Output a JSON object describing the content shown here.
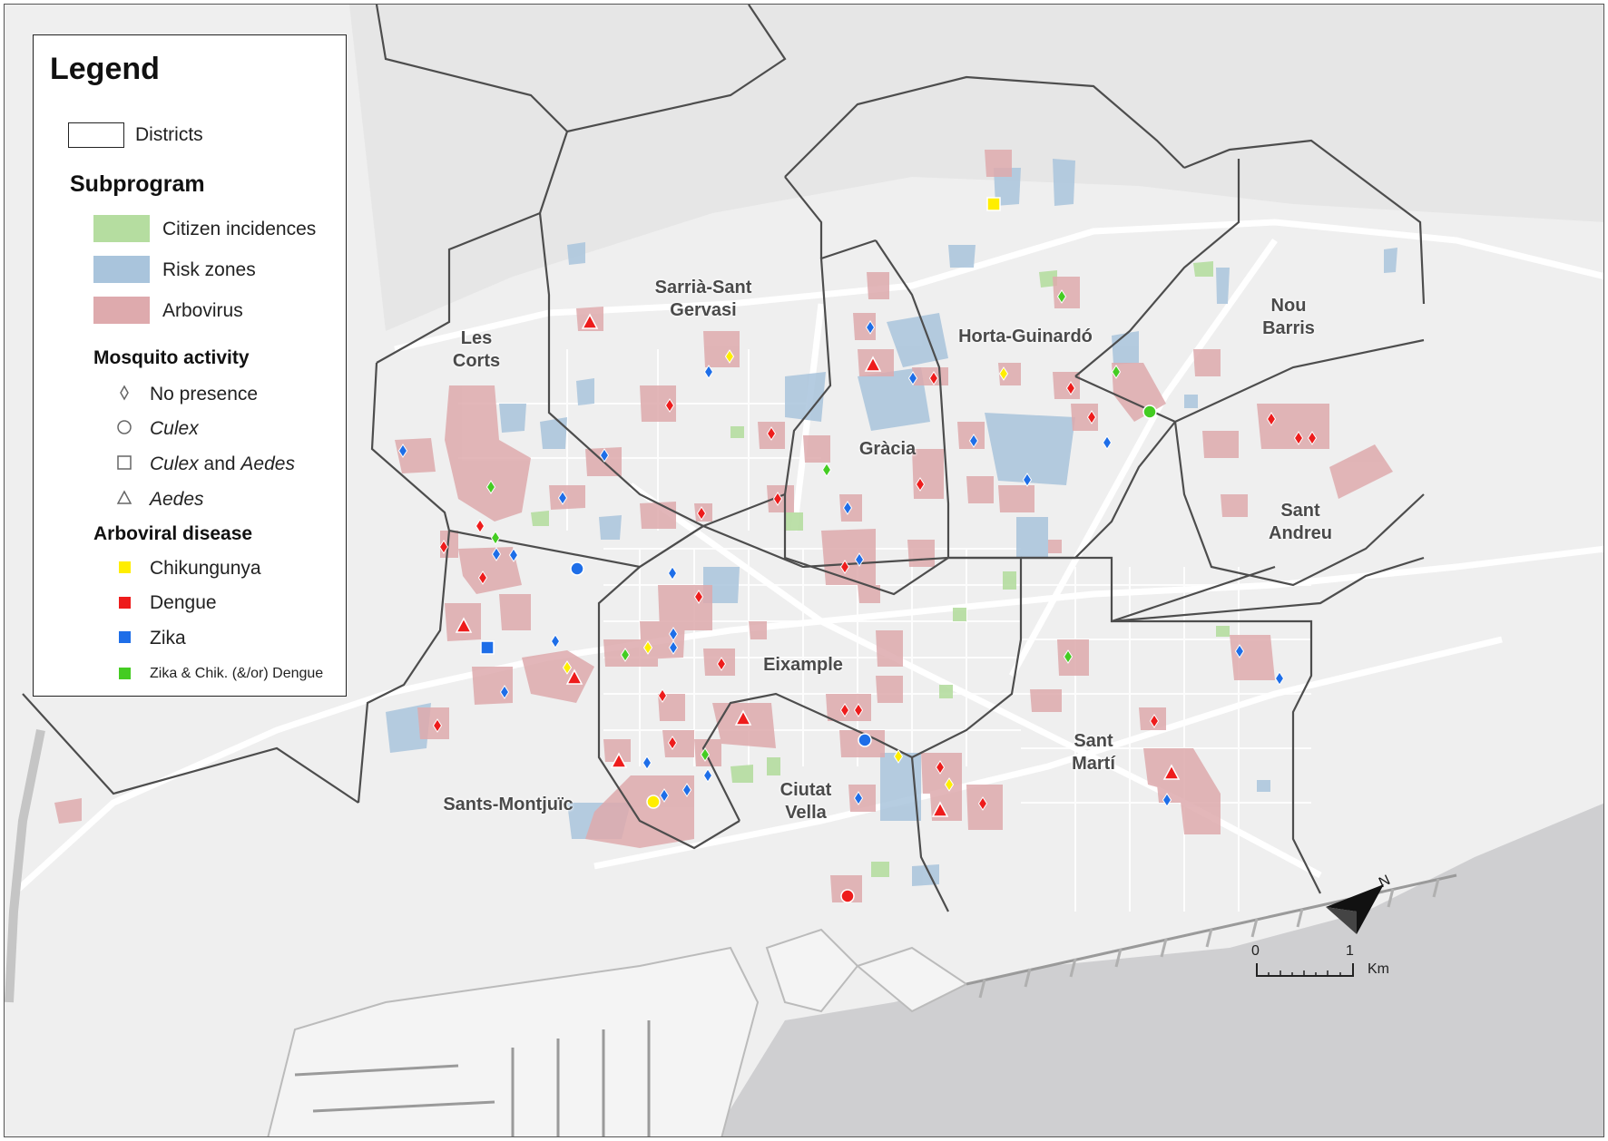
{
  "legend": {
    "title": "Legend",
    "districts_label": "Districts",
    "subprogram": {
      "heading": "Subprogram",
      "items": [
        {
          "label": "Citizen incidences",
          "color": "#b5dda0"
        },
        {
          "label": "Risk zones",
          "color": "#a9c4dc"
        },
        {
          "label": "Arbovirus",
          "color": "#deaaad"
        }
      ]
    },
    "mosquito_activity": {
      "heading": "Mosquito activity",
      "items": [
        {
          "label": "No presence",
          "symbol": "diamond"
        },
        {
          "label": "Culex",
          "symbol": "circle"
        },
        {
          "label_italic": "Culex",
          "label_rest": " and ",
          "label_italic2": "Aedes",
          "symbol": "square"
        },
        {
          "label": "Aedes",
          "symbol": "triangle"
        }
      ]
    },
    "arboviral_disease": {
      "heading": "Arboviral disease",
      "items": [
        {
          "label": "Chikungunya",
          "color": "#ffee00"
        },
        {
          "label": "Dengue",
          "color": "#ee1c1c"
        },
        {
          "label": "Zika",
          "color": "#1e6ee8"
        },
        {
          "label": "Zika & Chik. (&/or) Dengue",
          "color": "#44cc22"
        }
      ]
    }
  },
  "districts": [
    {
      "name": "Sarrià-Sant\nGervasi"
    },
    {
      "name": "Les\nCorts"
    },
    {
      "name": "Horta-Guinardó"
    },
    {
      "name": "Nou\nBarris"
    },
    {
      "name": "Gràcia"
    },
    {
      "name": "Sant\nAndreu"
    },
    {
      "name": "Eixample"
    },
    {
      "name": "Sant\nMartí"
    },
    {
      "name": "Ciutat\nVella"
    },
    {
      "name": "Sants-Montjuïc"
    }
  ],
  "scale": {
    "start": "0",
    "end": "1",
    "unit": "Km"
  },
  "colors": {
    "dengue": "#ee1c1c",
    "zika": "#1e6ee8",
    "chikungunya": "#ffee00",
    "combined": "#44cc22",
    "no_presence": "#888888",
    "arbovirus_zone": "#deaaad",
    "risk_zone": "#a9c4dc",
    "citizen_zone": "#b5dda0",
    "sea": "#cfcfd1",
    "land": "#eeeeee"
  }
}
